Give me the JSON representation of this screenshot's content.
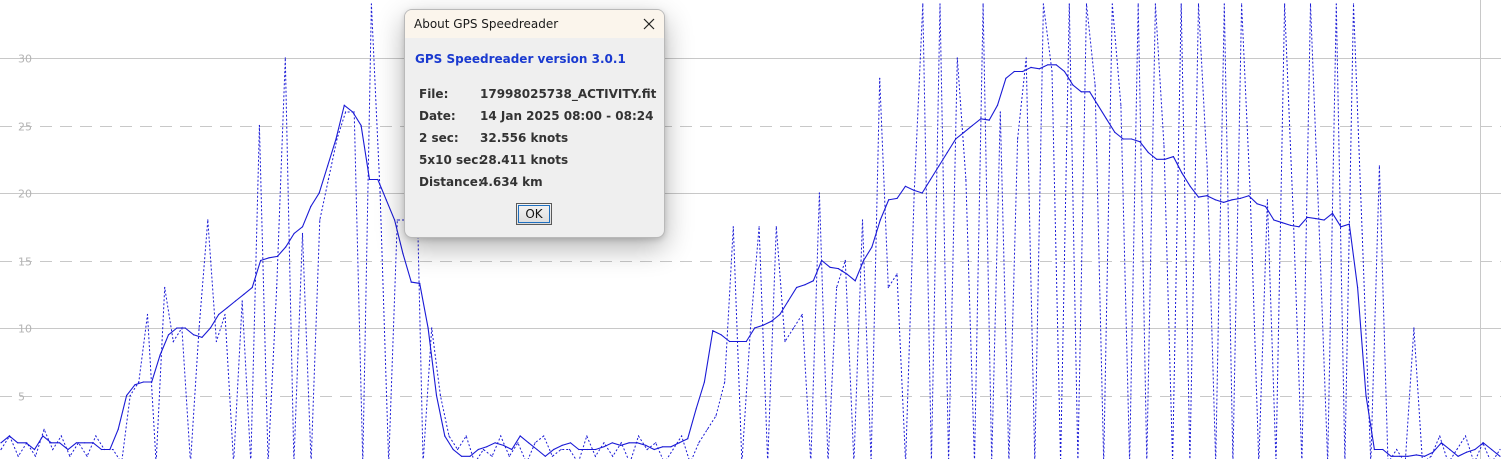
{
  "chart_data": {
    "type": "line",
    "ylim": [
      0,
      34
    ],
    "yticks": [
      "5",
      "10",
      "15",
      "20",
      "25",
      "30"
    ],
    "grid": true,
    "colors": {
      "line": "#1a1ad6",
      "grid": "#c8c8c8"
    },
    "series": [
      {
        "style": "solid",
        "values": [
          1.5,
          2,
          1.5,
          1.5,
          1,
          2,
          1.5,
          1.5,
          1,
          1.5,
          1.5,
          1.5,
          1,
          1,
          2.5,
          5,
          5.8,
          6,
          6,
          8,
          9.5,
          10,
          10,
          9.5,
          9.3,
          10,
          11,
          11.5,
          12,
          12.5,
          13,
          15,
          15.2,
          15.3,
          16,
          17,
          17.5,
          19,
          20,
          22,
          24,
          26.5,
          26,
          25,
          21,
          21,
          19.5,
          18,
          15.5,
          13.4,
          13.3,
          10,
          5,
          2,
          1,
          0.5,
          0.5,
          1,
          1.2,
          1.5,
          1.3,
          1,
          2,
          1.5,
          1,
          0.5,
          1,
          1.3,
          1.5,
          1,
          1,
          1,
          1.2,
          1.5,
          1.3,
          1.5,
          1.5,
          1.3,
          1,
          1.2,
          1.2,
          1.5,
          1.8,
          4,
          6,
          9.8,
          9.5,
          9,
          9,
          9,
          10,
          10.2,
          10.5,
          11,
          12,
          13,
          13.2,
          13.5,
          15,
          14.5,
          14.4,
          14,
          13.5,
          15,
          16,
          18,
          19.5,
          19.6,
          20.5,
          20.2,
          20,
          21,
          22,
          23,
          24,
          24.5,
          25,
          25.5,
          25.4,
          26.5,
          28.5,
          29,
          29,
          29.3,
          29.2,
          29.5,
          29.5,
          29,
          28,
          27.5,
          27.5,
          26.5,
          25.5,
          24.5,
          24,
          24,
          23.8,
          23,
          22.5,
          22.5,
          22.7,
          21.5,
          20.5,
          19.7,
          19.8,
          19.5,
          19.3,
          19.5,
          19.6,
          19.8,
          19.2,
          19,
          18,
          17.8,
          17.6,
          17.5,
          18.2,
          18.1,
          18,
          18.5,
          17.5,
          17.7,
          13,
          5,
          1,
          1,
          0.5,
          0.5,
          0.5,
          0.6,
          0.5,
          0.8,
          1.5,
          1,
          0.5,
          0.8,
          1,
          1.5,
          1,
          0.5
        ]
      },
      {
        "style": "dotted",
        "values": [
          1,
          2,
          0.5,
          1.5,
          0.5,
          2.5,
          1,
          2,
          0.5,
          1.5,
          0.5,
          2,
          1,
          1,
          0,
          5,
          6,
          11,
          0,
          13,
          9,
          10,
          0,
          10,
          18,
          9,
          11,
          0,
          12,
          0,
          25,
          0,
          13,
          30,
          0,
          17,
          0,
          18,
          21,
          24,
          26,
          26,
          0,
          34,
          20,
          0,
          18,
          18,
          28.5,
          0,
          10,
          5,
          2,
          1,
          2,
          0,
          1,
          0.5,
          2,
          0.5,
          1.5,
          0,
          1.5,
          2,
          0.5,
          1,
          1,
          0,
          2,
          0.5,
          1.5,
          0.5,
          1.5,
          0,
          2,
          1,
          1.5,
          0,
          1,
          2,
          0,
          1.5,
          2.5,
          3.5,
          6,
          17.5,
          0,
          10,
          17.5,
          0,
          17.5,
          9,
          10,
          11,
          0,
          20,
          0,
          13,
          15,
          0,
          18,
          0,
          28.5,
          13,
          14,
          0,
          20,
          34,
          0,
          34,
          0,
          30,
          21,
          0,
          34,
          0,
          26,
          0,
          24,
          30,
          0,
          34,
          29,
          0,
          34,
          0,
          34,
          28,
          0,
          34,
          26.5,
          0,
          34,
          0,
          34,
          23.5,
          0,
          34,
          0,
          34,
          22,
          0,
          34,
          0,
          34,
          20,
          0,
          19.5,
          0,
          34,
          18.5,
          0,
          34,
          17.5,
          0,
          34,
          0,
          34,
          17,
          0,
          22,
          0,
          1,
          0,
          10,
          0,
          0.5,
          2,
          0,
          1,
          2,
          0,
          1.5,
          0,
          1
        ]
      }
    ]
  },
  "dialog": {
    "title": "About GPS Speedreader",
    "heading": "GPS Speedreader version 3.0.1",
    "rows": [
      {
        "key": "File:",
        "value": "17998025738_ACTIVITY.fit"
      },
      {
        "key": "Date:",
        "value": "14 Jan 2025 08:00 - 08:24"
      },
      {
        "key": "2 sec:",
        "value": "32.556 knots"
      },
      {
        "key": "5x10 sec:",
        "value": "28.411 knots"
      },
      {
        "key": "Distance:",
        "value": "4.634 km"
      }
    ],
    "ok_label": "OK",
    "close_icon": "close-icon"
  }
}
